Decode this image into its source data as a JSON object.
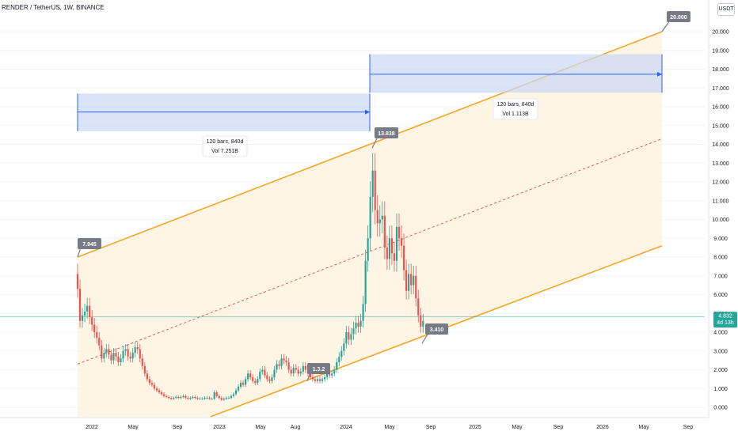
{
  "header": {
    "title": "RENDER / TetherUS, 1W, BINANCE",
    "unit": "USDT"
  },
  "colors": {
    "up": "#26a69a",
    "down": "#ef5350",
    "channel": "#f5a623",
    "channel_fill": "#fff3e0",
    "range_box": "#c9d8f5",
    "range_line": "#2962ff",
    "callout_bg": "#787b86",
    "mid_line": "#ef5350",
    "current_price": "#26a69a"
  },
  "chart_data": {
    "type": "candlestick",
    "y_ticks": [
      "0.000",
      "1.000",
      "2.000",
      "3.000",
      "4.000",
      "5.000",
      "6.000",
      "7.000",
      "8.000",
      "9.000",
      "10.000",
      "11.000",
      "12.000",
      "13.000",
      "14.000",
      "15.000",
      "16.000",
      "17.000",
      "18.000",
      "19.000",
      "20.000"
    ],
    "x_ticks": [
      "2022",
      "May",
      "Sep",
      "2023",
      "May",
      "Aug",
      "2024",
      "May",
      "Sep",
      "2025",
      "May",
      "Sep",
      "2026",
      "May",
      "Sep"
    ],
    "ylim": [
      -0.5,
      21
    ],
    "current_price": {
      "value": "4.832",
      "countdown": "4d 13h"
    },
    "candles_close": [
      6.3,
      4.6,
      4.9,
      5.1,
      5.4,
      4.8,
      4.4,
      4.0,
      3.7,
      3.3,
      2.6,
      2.9,
      3.1,
      2.8,
      2.5,
      2.9,
      2.7,
      2.4,
      2.6,
      3.0,
      3.1,
      2.7,
      2.6,
      2.9,
      3.2,
      3.1,
      2.6,
      2.2,
      1.8,
      1.5,
      1.3,
      1.2,
      1.0,
      0.9,
      0.8,
      0.7,
      0.6,
      0.55,
      0.5,
      0.45,
      0.5,
      0.55,
      0.5,
      0.55,
      0.6,
      0.5,
      0.45,
      0.5,
      0.55,
      0.5,
      0.45,
      0.45,
      0.45,
      0.5,
      0.5,
      0.45,
      0.45,
      0.8,
      0.6,
      0.5,
      0.4,
      0.45,
      0.5,
      0.5,
      0.6,
      0.7,
      0.9,
      1.1,
      1.3,
      1.2,
      1.5,
      1.8,
      1.6,
      1.4,
      1.3,
      1.5,
      1.9,
      2.0,
      1.7,
      1.5,
      1.4,
      1.6,
      2.0,
      2.3,
      2.2,
      2.6,
      2.5,
      2.4,
      2.0,
      1.8,
      2.1,
      2.0,
      1.8,
      1.9,
      2.2,
      2.0,
      1.8,
      1.6,
      1.5,
      1.4,
      1.5,
      1.4,
      1.5,
      1.6,
      1.9,
      1.7,
      1.8,
      2.0,
      2.4,
      2.7,
      3.0,
      3.4,
      4.0,
      3.6,
      3.9,
      4.2,
      4.5,
      4.3,
      4.6,
      5.5,
      7.8,
      9.0,
      11.2,
      12.6,
      10.5,
      9.8,
      10.0,
      10.2,
      8.5,
      7.9,
      9.0,
      8.2,
      7.8,
      9.6,
      9.0,
      8.6,
      7.3,
      6.2,
      7.1,
      6.5,
      7.0,
      5.8,
      4.9,
      4.3,
      4.6
    ],
    "annotations": {
      "peak_left": "7.945",
      "peak_high": "13.838",
      "low_mid": "1.3.2",
      "low_recent": "3.410",
      "target": "20.000",
      "range_box_1": {
        "label": "120 bars, 840d",
        "vol": "Vol 7.251B"
      },
      "range_box_2": {
        "label": "120 bars, 840d",
        "vol": "Vol 1.113B"
      }
    }
  }
}
